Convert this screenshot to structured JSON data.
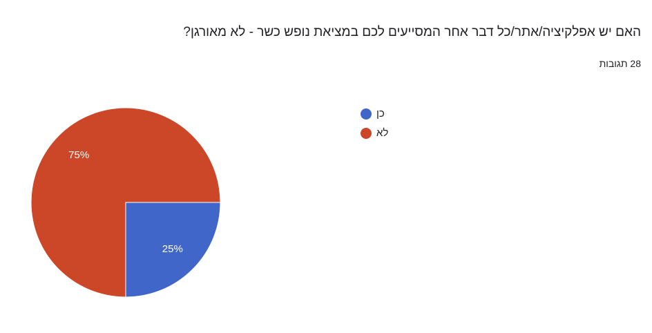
{
  "chart_data": {
    "type": "pie",
    "title": "האם יש אפלקיציה/אתר/כל דבר אחר המסייעים לכם במציאת נופש כשר - לא מאורגן?",
    "subtitle": "28 תגובות",
    "categories": [
      "כן",
      "לא"
    ],
    "values": [
      25,
      75
    ],
    "value_labels": [
      "25%",
      "75%"
    ],
    "colors": [
      "#3f66c8",
      "#cc4628"
    ]
  }
}
